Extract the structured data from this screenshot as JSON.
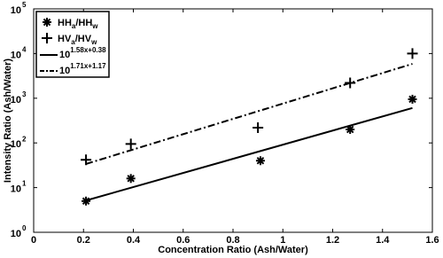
{
  "chart_data": {
    "type": "scatter",
    "x_label": "Concentration Ratio (Ash/Water)",
    "y_label": "Intensity Ratio (Ash/Water)",
    "xlim": [
      0,
      1.6
    ],
    "xticks": [
      0,
      0.2,
      0.4,
      0.6,
      0.8,
      1,
      1.2,
      1.4,
      1.6
    ],
    "ylim": [
      1,
      100000
    ],
    "y_scale": "log",
    "yticks": [
      {
        "value": 1,
        "label": "10",
        "exponent": "0"
      },
      {
        "value": 10,
        "label": "10",
        "exponent": "1"
      },
      {
        "value": 100,
        "label": "10",
        "exponent": "2"
      },
      {
        "value": 1000,
        "label": "10",
        "exponent": "3"
      },
      {
        "value": 10000,
        "label": "10",
        "exponent": "4"
      },
      {
        "value": 100000,
        "label": "10",
        "exponent": "5"
      }
    ],
    "legend": "upper left",
    "series": [
      {
        "name_parts": [
          {
            "text": "HH"
          },
          {
            "text": "a",
            "shift": "sub"
          },
          {
            "text": "/HH"
          },
          {
            "text": "w",
            "shift": "sub"
          }
        ],
        "marker": "asterisk",
        "color": "#000000",
        "x": [
          0.21,
          0.39,
          0.91,
          1.27,
          1.52
        ],
        "values": [
          5,
          16,
          40,
          200,
          950
        ]
      },
      {
        "name_parts": [
          {
            "text": "HV"
          },
          {
            "text": "a",
            "shift": "sub"
          },
          {
            "text": "/HV"
          },
          {
            "text": "w",
            "shift": "sub"
          }
        ],
        "marker": "plus",
        "color": "#000000",
        "x": [
          0.21,
          0.39,
          0.9,
          1.27,
          1.52
        ],
        "values": [
          42,
          95,
          220,
          2200,
          10000
        ]
      },
      {
        "name_parts": [
          {
            "text": "10"
          },
          {
            "text": "1.58x+0.38",
            "shift": "super"
          }
        ],
        "marker": "solid",
        "color": "#000000",
        "x": [
          0.21,
          1.52
        ],
        "values": [
          5.15,
          605
        ]
      },
      {
        "name_parts": [
          {
            "text": "10"
          },
          {
            "text": "1.71x+1.17",
            "shift": "super"
          }
        ],
        "marker": "dashdot",
        "color": "#000000",
        "x": [
          0.21,
          1.52
        ],
        "values": [
          33.8,
          5875
        ]
      }
    ]
  }
}
